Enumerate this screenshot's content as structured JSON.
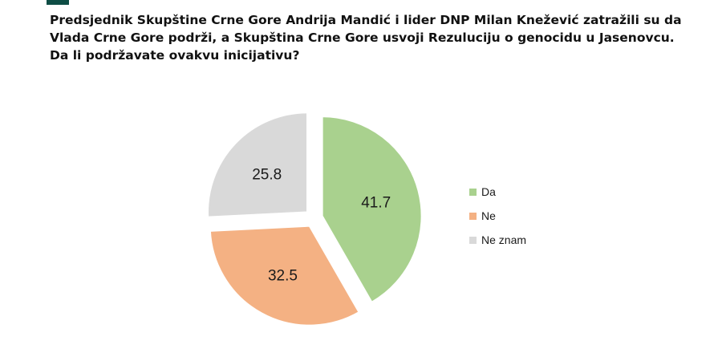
{
  "question": "Predsjednik Skupštine Crne Gore Andrija Mandić i lider DNP Milan Knežević zatražili su da Vlada Crne Gore podrži, a Skupština Crne Gore usvoji Rezuluciju o genocidu u Jasenovcu. Da li podržavate ovakvu inicijativu?",
  "colors": {
    "da": "#a9d18e",
    "ne": "#f4b183",
    "ne_znam": "#d9d9d9",
    "accent_tab": "#0e4d45"
  },
  "chart_data": {
    "type": "pie",
    "title": "",
    "slices": [
      {
        "name": "Da",
        "value": 41.7,
        "label": "41.7",
        "color": "#a9d18e"
      },
      {
        "name": "Ne",
        "value": 32.5,
        "label": "32.5",
        "color": "#f4b183"
      },
      {
        "name": "Ne znam",
        "value": 25.8,
        "label": "25.8",
        "color": "#d9d9d9"
      }
    ],
    "start_angle_deg": 0,
    "direction": "clockwise",
    "exploded": true,
    "legend": {
      "position": "right",
      "entries": [
        "Da",
        "Ne",
        "Ne znam"
      ]
    }
  }
}
